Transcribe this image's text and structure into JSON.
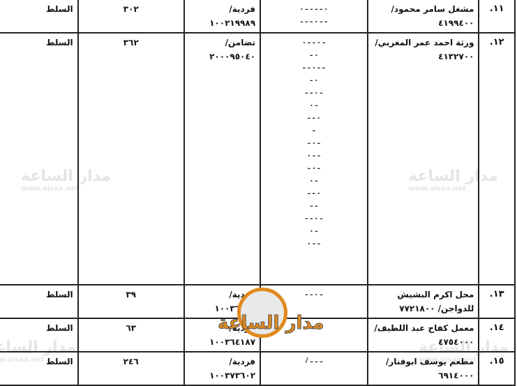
{
  "rows": [
    {
      "no": "١١.",
      "name": "مشغل سامر محمود/ ٤١٩٩٤٠٠",
      "type": "فردية/ ١٠٠٢١٩٩٨٩",
      "count": "٣٠٢",
      "location": "السلط"
    },
    {
      "no": "١٢.",
      "name": "ورثة احمد عمر المغربي/ ٤١٣٢٧٠٠",
      "type": "تضامن/ ٢٠٠٠٩٥٠٤٠",
      "count": "٣٦٢",
      "location": "السلط"
    },
    {
      "no": "١٣.",
      "name": "محل اكرم البشيش للدواجن/ ٧٧٢١٨٠٠",
      "type": "فردية/ ١٠٠٣٦١٥١",
      "count": "٣٩",
      "location": "السلط"
    },
    {
      "no": "١٤.",
      "name": "معمل كفاح عبد اللطيف/ ٤٧٥٤٠٠٠",
      "type": "فردية/ ١٠٠٣٦٤١٨٧",
      "count": "٦٣",
      "location": "السلط"
    },
    {
      "no": "١٥.",
      "name": "مطعم يوسف ابوفنار/ ٦٩١٤٠٠٠",
      "type": "فردية/ ١٠٠٣٧٣٦٠٢",
      "count": "٢٤٦",
      "location": "السلط"
    }
  ],
  "watermark": {
    "text": "مدار الساعة",
    "url": "www.alsaa.net"
  },
  "logo": {
    "text": "مدار الساعة",
    "accent": "#e08a1e"
  }
}
